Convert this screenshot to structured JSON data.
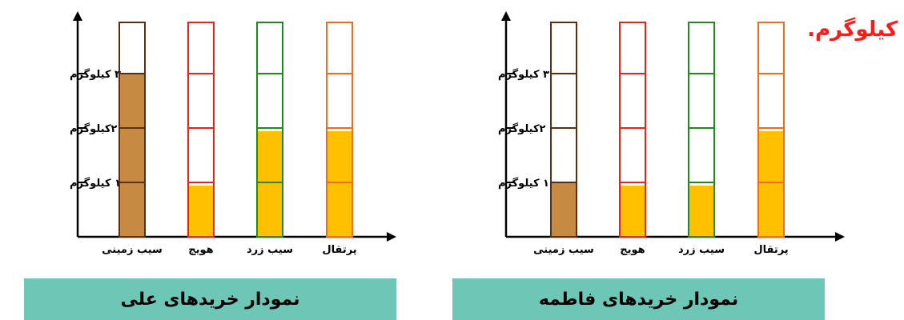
{
  "unit_note": "کیلوگرم.",
  "colors": {
    "filled_potato": "#c68a42",
    "filled_produce": "#ffc000",
    "title_box": "#6ec6b6",
    "unit_note": "#ff1a1a"
  },
  "chart_data": [
    {
      "type": "bar",
      "title": "نمودار خریدهای علی",
      "categories": [
        "سیب زمینی",
        "هویج",
        "سیب زرد",
        "پرتقال"
      ],
      "category_colors": [
        "#5a2e0e",
        "#e8231e",
        "#1f8a1f",
        "#f26a1b"
      ],
      "values": [
        3,
        1,
        2,
        2
      ],
      "ylim": [
        0,
        4
      ],
      "yticks": [
        1,
        2,
        3
      ],
      "ytick_labels": [
        "۱ کیلوگرم",
        "۲کیلوگرم",
        "۳ کیلوگرم"
      ],
      "grid": false
    },
    {
      "type": "bar",
      "title": "نمودار خریدهای فاطمه",
      "categories": [
        "سیب زمینی",
        "هویج",
        "سیب زرد",
        "پرتقال"
      ],
      "category_colors": [
        "#5a2e0e",
        "#e8231e",
        "#1f8a1f",
        "#f26a1b"
      ],
      "values": [
        1,
        1,
        1,
        2
      ],
      "ylim": [
        0,
        4
      ],
      "yticks": [
        1,
        2,
        3
      ],
      "ytick_labels": [
        "۱ کیلوگرم",
        "۲کیلوگرم",
        "۳ کیلوگرم"
      ],
      "grid": false
    }
  ]
}
